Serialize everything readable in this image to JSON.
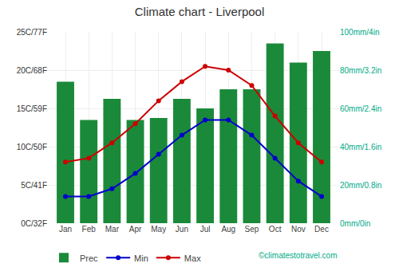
{
  "chart_data": {
    "type": "bar",
    "title": "Climate chart - Liverpool",
    "categories": [
      "Jan",
      "Feb",
      "Mar",
      "Apr",
      "May",
      "Jun",
      "Jul",
      "Aug",
      "Sep",
      "Oct",
      "Nov",
      "Dec"
    ],
    "series": [
      {
        "name": "Prec",
        "type": "bar",
        "axis": "y2",
        "color": "#1a8a3a",
        "values": [
          74,
          54,
          65,
          54,
          55,
          65,
          60,
          70,
          70,
          94,
          84,
          90
        ]
      },
      {
        "name": "Min",
        "type": "line",
        "marker": "circle",
        "color": "#0000cc",
        "values": [
          3.5,
          3.5,
          4.5,
          6.5,
          9.0,
          11.5,
          13.5,
          13.5,
          11.5,
          8.5,
          5.5,
          3.5
        ]
      },
      {
        "name": "Max",
        "type": "line",
        "marker": "circle",
        "color": "#cc0000",
        "values": [
          8.0,
          8.5,
          10.5,
          13.0,
          16.0,
          18.5,
          20.5,
          20.0,
          18.0,
          14.0,
          10.5,
          8.0
        ]
      }
    ],
    "ylim": [
      0,
      25
    ],
    "yticks": [
      {
        "value": 0,
        "label": "0C/32F"
      },
      {
        "value": 5,
        "label": "5C/41F"
      },
      {
        "value": 10,
        "label": "10C/50F"
      },
      {
        "value": 15,
        "label": "15C/59F"
      },
      {
        "value": 20,
        "label": "20C/68F"
      },
      {
        "value": 25,
        "label": "25C/77F"
      }
    ],
    "y2lim": [
      0,
      100
    ],
    "y2ticks": [
      {
        "value": 0,
        "label": "0mm/0in"
      },
      {
        "value": 20,
        "label": "20mm/0.8in"
      },
      {
        "value": 40,
        "label": "40mm/1.6in"
      },
      {
        "value": 60,
        "label": "60mm/2.4in"
      },
      {
        "value": 80,
        "label": "80mm/3.2in"
      },
      {
        "value": 100,
        "label": "100mm/4in"
      }
    ],
    "grid": true,
    "legend": "lower left",
    "annotations": [
      "©climatestotravel.com"
    ]
  }
}
